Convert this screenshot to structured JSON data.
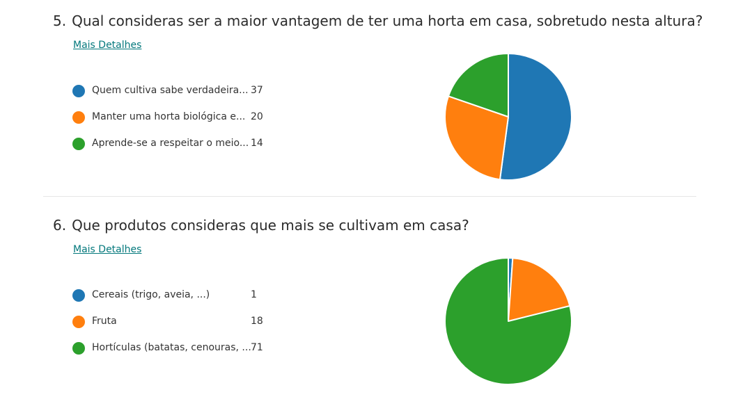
{
  "questions": [
    {
      "number": "5.",
      "title": "Qual consideras ser a maior vantagem de ter uma horta em casa, sobretudo nesta altura?",
      "details_link": "Mais Detalhes"
    },
    {
      "number": "6.",
      "title": "Que produtos consideras que mais se cultivam em casa?",
      "details_link": "Mais Detalhes"
    }
  ],
  "chart_data": [
    {
      "type": "pie",
      "title": "",
      "legend_position": "left",
      "categories": [
        "Quem cultiva sabe verdadeira...",
        "Manter uma horta biológica e...",
        "Aprende-se a respeitar o meio..."
      ],
      "values": [
        37,
        20,
        14
      ],
      "colors": [
        "#1f77b4",
        "#ff7f0e",
        "#2ca02c"
      ]
    },
    {
      "type": "pie",
      "title": "",
      "legend_position": "left",
      "categories": [
        "Cereais (trigo, aveia, ...)",
        "Fruta",
        "Hortículas (batatas, cenouras, ..."
      ],
      "values": [
        1,
        18,
        71
      ],
      "colors": [
        "#1f77b4",
        "#ff7f0e",
        "#2ca02c"
      ]
    }
  ]
}
